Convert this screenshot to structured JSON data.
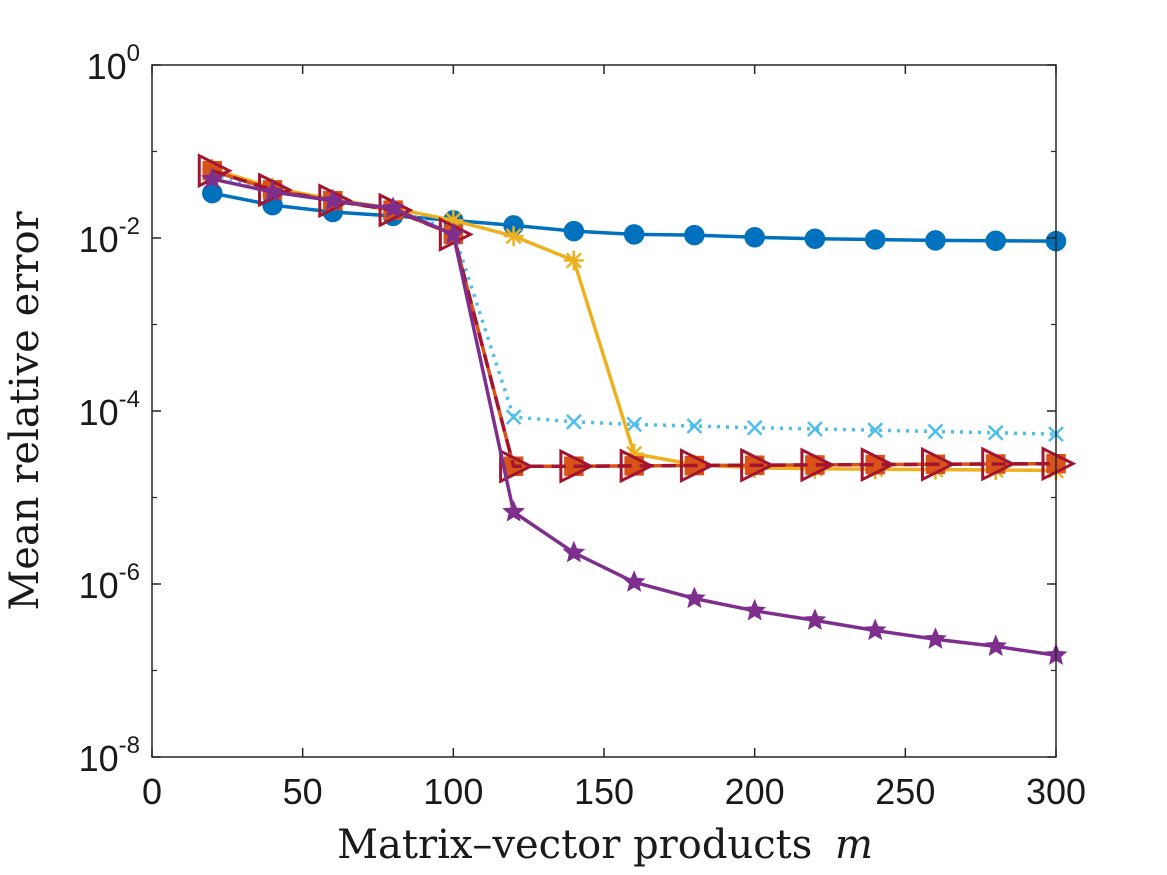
{
  "chart_data": {
    "type": "line",
    "title": "",
    "xlabel": "Matrix–vector products",
    "xlabel_symbol": "m",
    "ylabel": "Mean relative error",
    "xlim": [
      0,
      300
    ],
    "ylim": [
      1e-08,
      1
    ],
    "yscale": "log",
    "grid": false,
    "x_ticks": [
      0,
      50,
      100,
      150,
      200,
      250,
      300
    ],
    "x_tick_labels": [
      "0",
      "50",
      "100",
      "150",
      "200",
      "250",
      "300"
    ],
    "y_ticks": [
      1e-08,
      1e-06,
      0.0001,
      0.01,
      1
    ],
    "y_tick_labels": [
      {
        "base": "10",
        "exp": "-8"
      },
      {
        "base": "10",
        "exp": "-6"
      },
      {
        "base": "10",
        "exp": "-4"
      },
      {
        "base": "10",
        "exp": "-2"
      },
      {
        "base": "10",
        "exp": "0"
      }
    ],
    "x": [
      20,
      40,
      60,
      80,
      100,
      120,
      140,
      160,
      180,
      200,
      220,
      240,
      260,
      280,
      300
    ],
    "series": [
      {
        "name": "series-blue-circle",
        "color": "#0072BD",
        "marker": "circle",
        "dash": "solid",
        "values": [
          0.033,
          0.024,
          0.02,
          0.018,
          0.016,
          0.014,
          0.012,
          0.011,
          0.0108,
          0.0102,
          0.0098,
          0.0096,
          0.0094,
          0.0093,
          0.0092
        ]
      },
      {
        "name": "series-lightblue-x",
        "color": "#4DBEEE",
        "marker": "x",
        "dash": "dotted",
        "values": [
          0.055,
          0.035,
          0.027,
          0.022,
          0.012,
          8.5e-05,
          7.5e-05,
          7e-05,
          6.7e-05,
          6.4e-05,
          6.2e-05,
          6e-05,
          5.8e-05,
          5.6e-05,
          5.4e-05
        ]
      },
      {
        "name": "series-yellow-asterisk",
        "color": "#EDB120",
        "marker": "asterisk",
        "dash": "solid",
        "values": [
          0.063,
          0.038,
          0.028,
          0.022,
          0.016,
          0.0105,
          0.0055,
          3.2e-05,
          2.4e-05,
          2.2e-05,
          2.15e-05,
          2.12e-05,
          2.1e-05,
          2.08e-05,
          2.05e-05
        ]
      },
      {
        "name": "series-orange-square",
        "color": "#D95319",
        "marker": "square",
        "dash": "solid",
        "values": [
          0.06,
          0.036,
          0.027,
          0.021,
          0.011,
          2.3e-05,
          2.3e-05,
          2.32e-05,
          2.34e-05,
          2.36e-05,
          2.38e-05,
          2.4e-05,
          2.42e-05,
          2.44e-05,
          2.46e-05
        ]
      },
      {
        "name": "series-darkred-triangle",
        "color": "#A2142F",
        "marker": "triangle-right",
        "dash": "dashed",
        "values": [
          0.06,
          0.036,
          0.027,
          0.021,
          0.011,
          2.3e-05,
          2.3e-05,
          2.32e-05,
          2.34e-05,
          2.36e-05,
          2.38e-05,
          2.4e-05,
          2.42e-05,
          2.44e-05,
          2.46e-05
        ]
      },
      {
        "name": "series-purple-star",
        "color": "#7E2F8E",
        "marker": "star",
        "dash": "solid",
        "values": [
          0.048,
          0.034,
          0.027,
          0.022,
          0.011,
          6.8e-06,
          2.3e-06,
          1.05e-06,
          6.8e-07,
          4.9e-07,
          3.8e-07,
          2.9e-07,
          2.3e-07,
          1.9e-07,
          1.5e-07
        ]
      }
    ]
  }
}
